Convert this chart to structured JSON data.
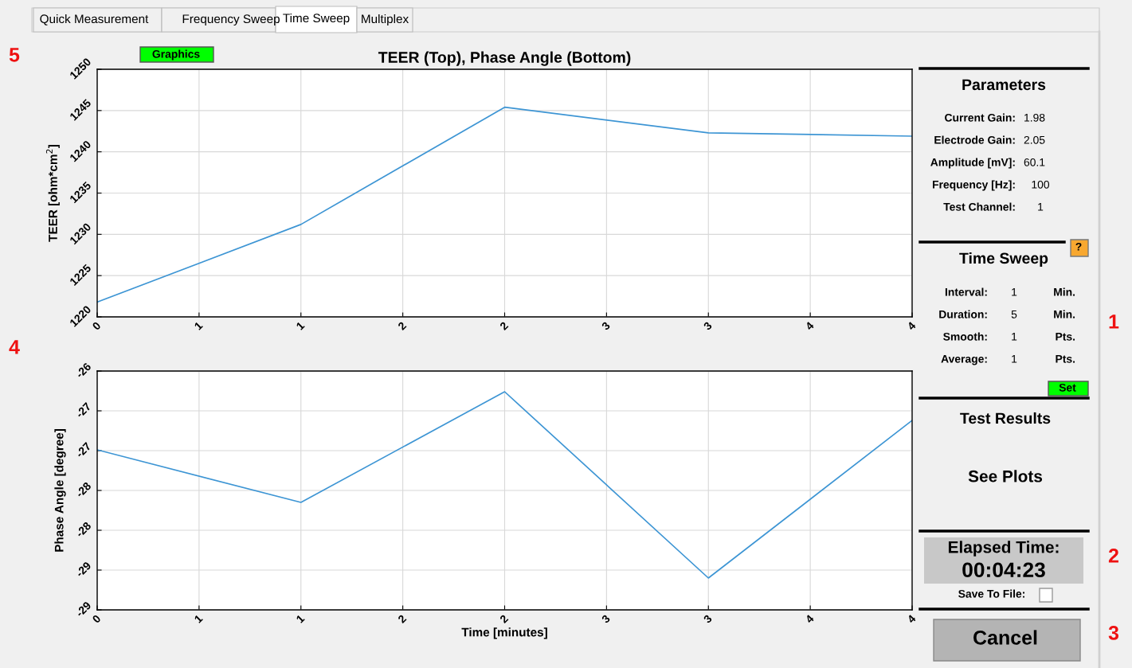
{
  "chart_data": [
    {
      "type": "line",
      "title": "TEER (Top), Phase Angle (Bottom)",
      "ylabel": "TEER [ohm*cm$^{2}$]",
      "x": [
        0,
        1,
        2,
        3,
        4
      ],
      "series": [
        {
          "color": "#3d95d4",
          "values": [
            1221.8,
            1231.2,
            1245.4,
            1242.3,
            1241.9
          ]
        }
      ],
      "xlim": [
        0,
        4
      ],
      "xticks": [
        0,
        {
          "value": 0.5,
          "label": "1"
        },
        1,
        {
          "value": 1.5,
          "label": "2"
        },
        2,
        {
          "value": 2.5,
          "label": "3"
        },
        3,
        {
          "value": 3.5,
          "label": "4"
        },
        4
      ],
      "ylim": [
        1220,
        1250
      ],
      "yticks": [
        1220,
        1225,
        1230,
        1235,
        1240,
        1245,
        1250
      ],
      "grid": true,
      "marker": "none",
      "line_style": "solid"
    },
    {
      "type": "line",
      "xlabel": "Time [minutes]",
      "ylabel": "Phase Angle [degree]",
      "x": [
        0,
        1,
        2,
        3,
        4
      ],
      "series": [
        {
          "color": "#3d95d4",
          "values": [
            -26.99,
            -27.65,
            -26.26,
            -28.6,
            -26.62
          ]
        }
      ],
      "xlim": [
        0,
        4
      ],
      "xticks": [
        0,
        {
          "value": 0.5,
          "label": "1"
        },
        1,
        {
          "value": 1.5,
          "label": "2"
        },
        2,
        {
          "value": 2.5,
          "label": "3"
        },
        3,
        {
          "value": 3.5,
          "label": "4"
        },
        4
      ],
      "ylim": [
        -29,
        -26
      ],
      "yticks": [
        {
          "value": -29,
          "label": "-29"
        },
        {
          "value": -28.5,
          "label": "-29"
        },
        {
          "value": -28,
          "label": "-28"
        },
        {
          "value": -27.5,
          "label": "-28"
        },
        {
          "value": -27,
          "label": "-27"
        },
        {
          "value": -26.5,
          "label": "-27"
        },
        {
          "value": -26,
          "label": "-26"
        }
      ],
      "grid": true,
      "marker": "none",
      "line_style": "solid"
    },
    {
      "type": "other",
      "annotations": [
        "Quick Measurement",
        "Frequency Sweep",
        "Time Sweep",
        "Multiplex",
        "Graphics",
        "Parameters",
        "Current Gain:",
        "1.98",
        "Electrode Gain:",
        "2.05",
        "Amplitude [mV]:",
        "60.1",
        "Frequency [Hz]:",
        "100",
        "Test Channel:",
        "1",
        "Time Sweep",
        "?",
        "Interval:",
        "1",
        "Min.",
        "Duration:",
        "5",
        "Min.",
        "Smooth:",
        "1",
        "Pts.",
        "Average:",
        "1",
        "Pts.",
        "Set",
        "Test Results",
        "See Plots",
        "Elapsed Time:",
        "00:04:23",
        "Save To File:",
        "Cancel",
        "5",
        "4",
        "1",
        "2",
        "3"
      ]
    }
  ]
}
